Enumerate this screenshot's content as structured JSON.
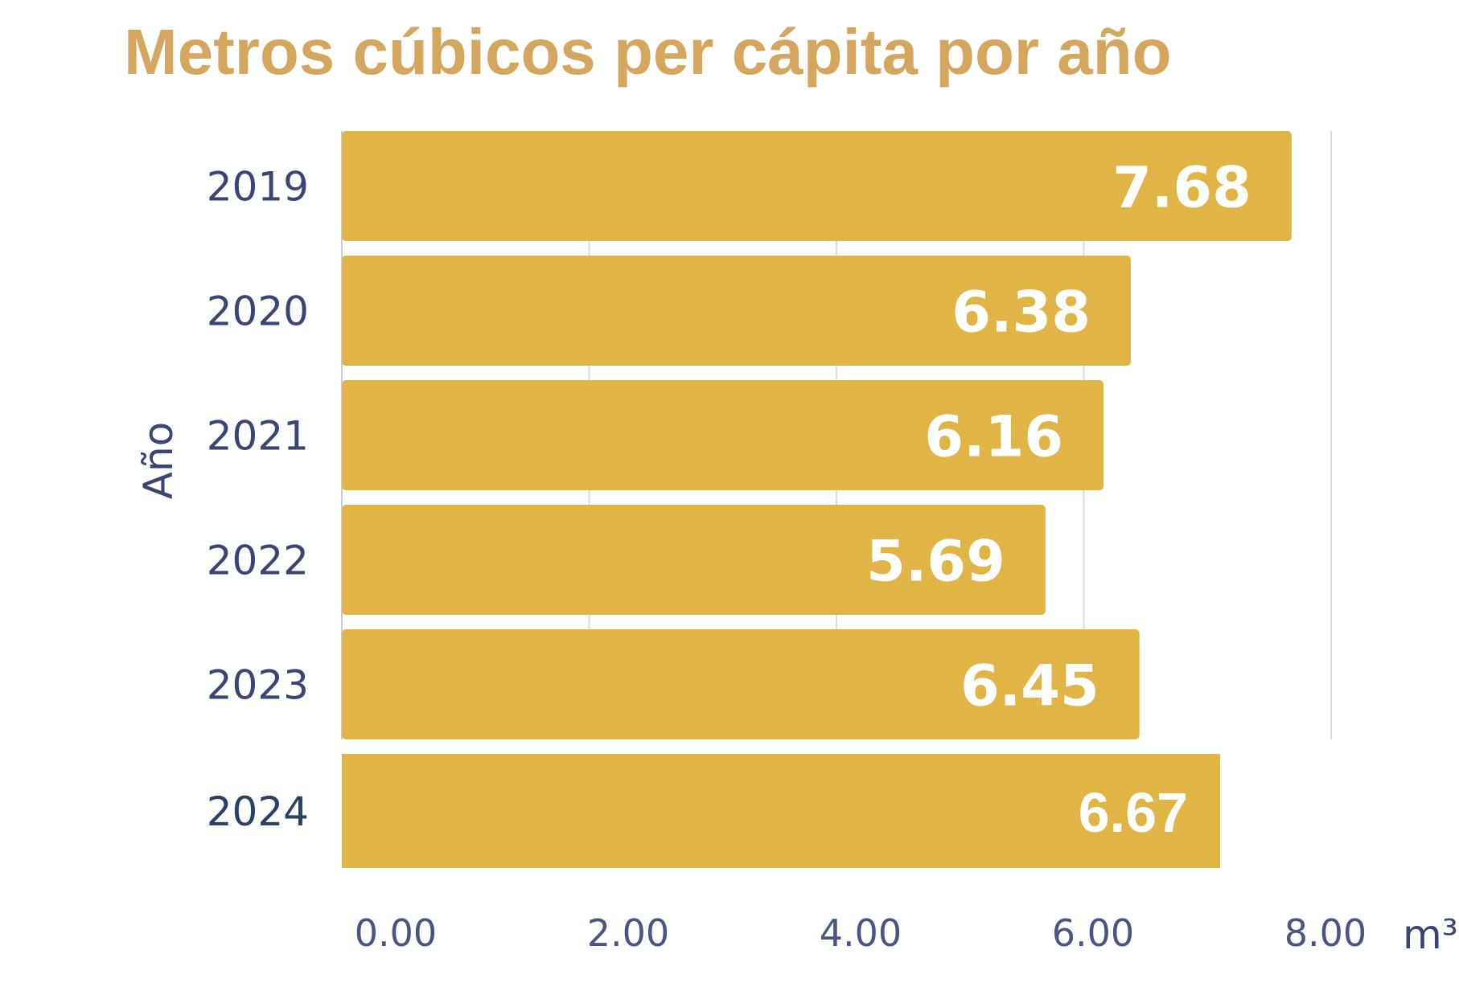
{
  "chart_data": {
    "type": "bar",
    "orientation": "horizontal",
    "title": "Metros cúbicos per cápita por año",
    "categories": [
      "2019",
      "2020",
      "2021",
      "2022",
      "2023",
      "2024"
    ],
    "values": [
      7.68,
      6.38,
      6.16,
      5.69,
      6.45,
      6.67
    ],
    "value_labels": [
      "7.68",
      "6.38",
      "6.16",
      "5.69",
      "6.45",
      "6.67"
    ],
    "xlabel": "m³",
    "ylabel": "Año",
    "xlim": [
      0,
      8
    ],
    "xticks": [
      0,
      2,
      4,
      6,
      8
    ],
    "xtick_labels": [
      "0.00",
      "2.00",
      "4.00",
      "6.00",
      "8.00"
    ],
    "grid": true,
    "colors": {
      "bar": "#E0B545",
      "title": "#D5A65D",
      "text": "#3a4574",
      "grid": "#d9dbe3"
    }
  }
}
